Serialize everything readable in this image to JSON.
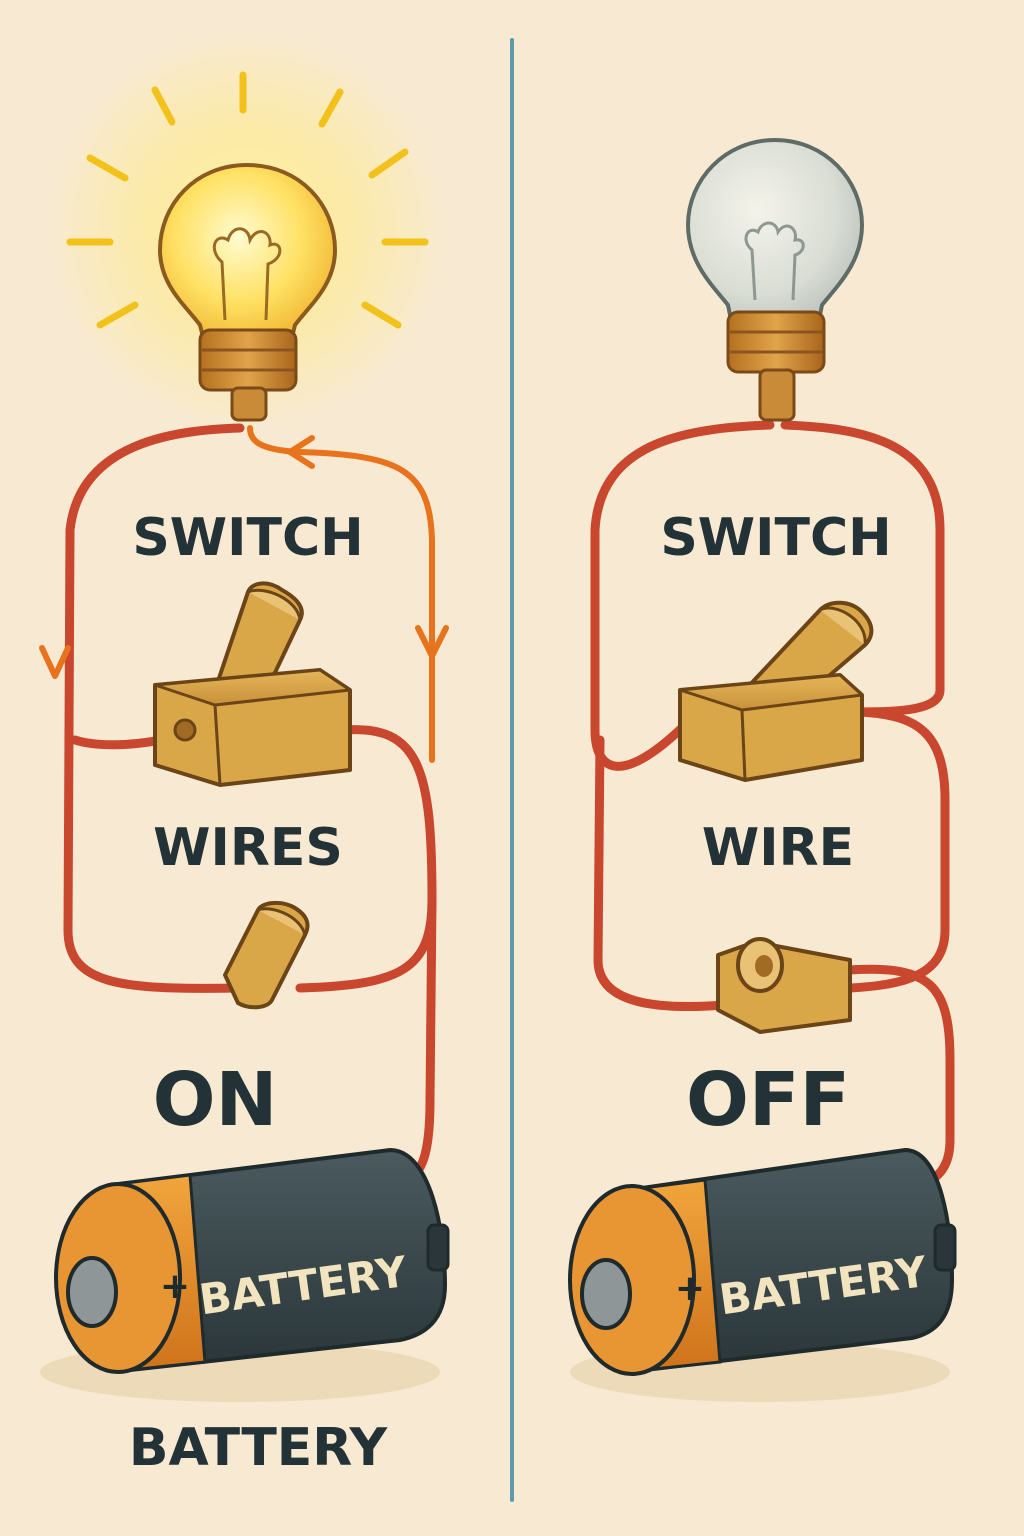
{
  "panels": {
    "left": {
      "state": "ON",
      "switch_label": "SWITCH",
      "wires_label": "WIRES",
      "state_label": "ON",
      "battery_body_label": "BATTERY",
      "plus_sign": "+",
      "bottom_label": "BATTERY",
      "bulb_lit": true
    },
    "right": {
      "state": "OFF",
      "switch_label": "SWITCH",
      "wires_label": "WIRE",
      "state_label": "OFF",
      "battery_body_label": "BATTERY",
      "plus_sign": "+",
      "bulb_lit": false
    }
  },
  "colors": {
    "background": "#f8ead2",
    "divider": "#5a9bab",
    "wire": "#c9472e",
    "current_flow": "#e8731c",
    "glow": "#ffe97a",
    "switch_body": "#d9a648",
    "battery_body": "#37464b",
    "battery_band": "#e58d24"
  },
  "icons": [
    "lit-bulb-icon",
    "unlit-bulb-icon",
    "toggle-switch-icon",
    "battery-icon",
    "current-arrow-icon"
  ]
}
